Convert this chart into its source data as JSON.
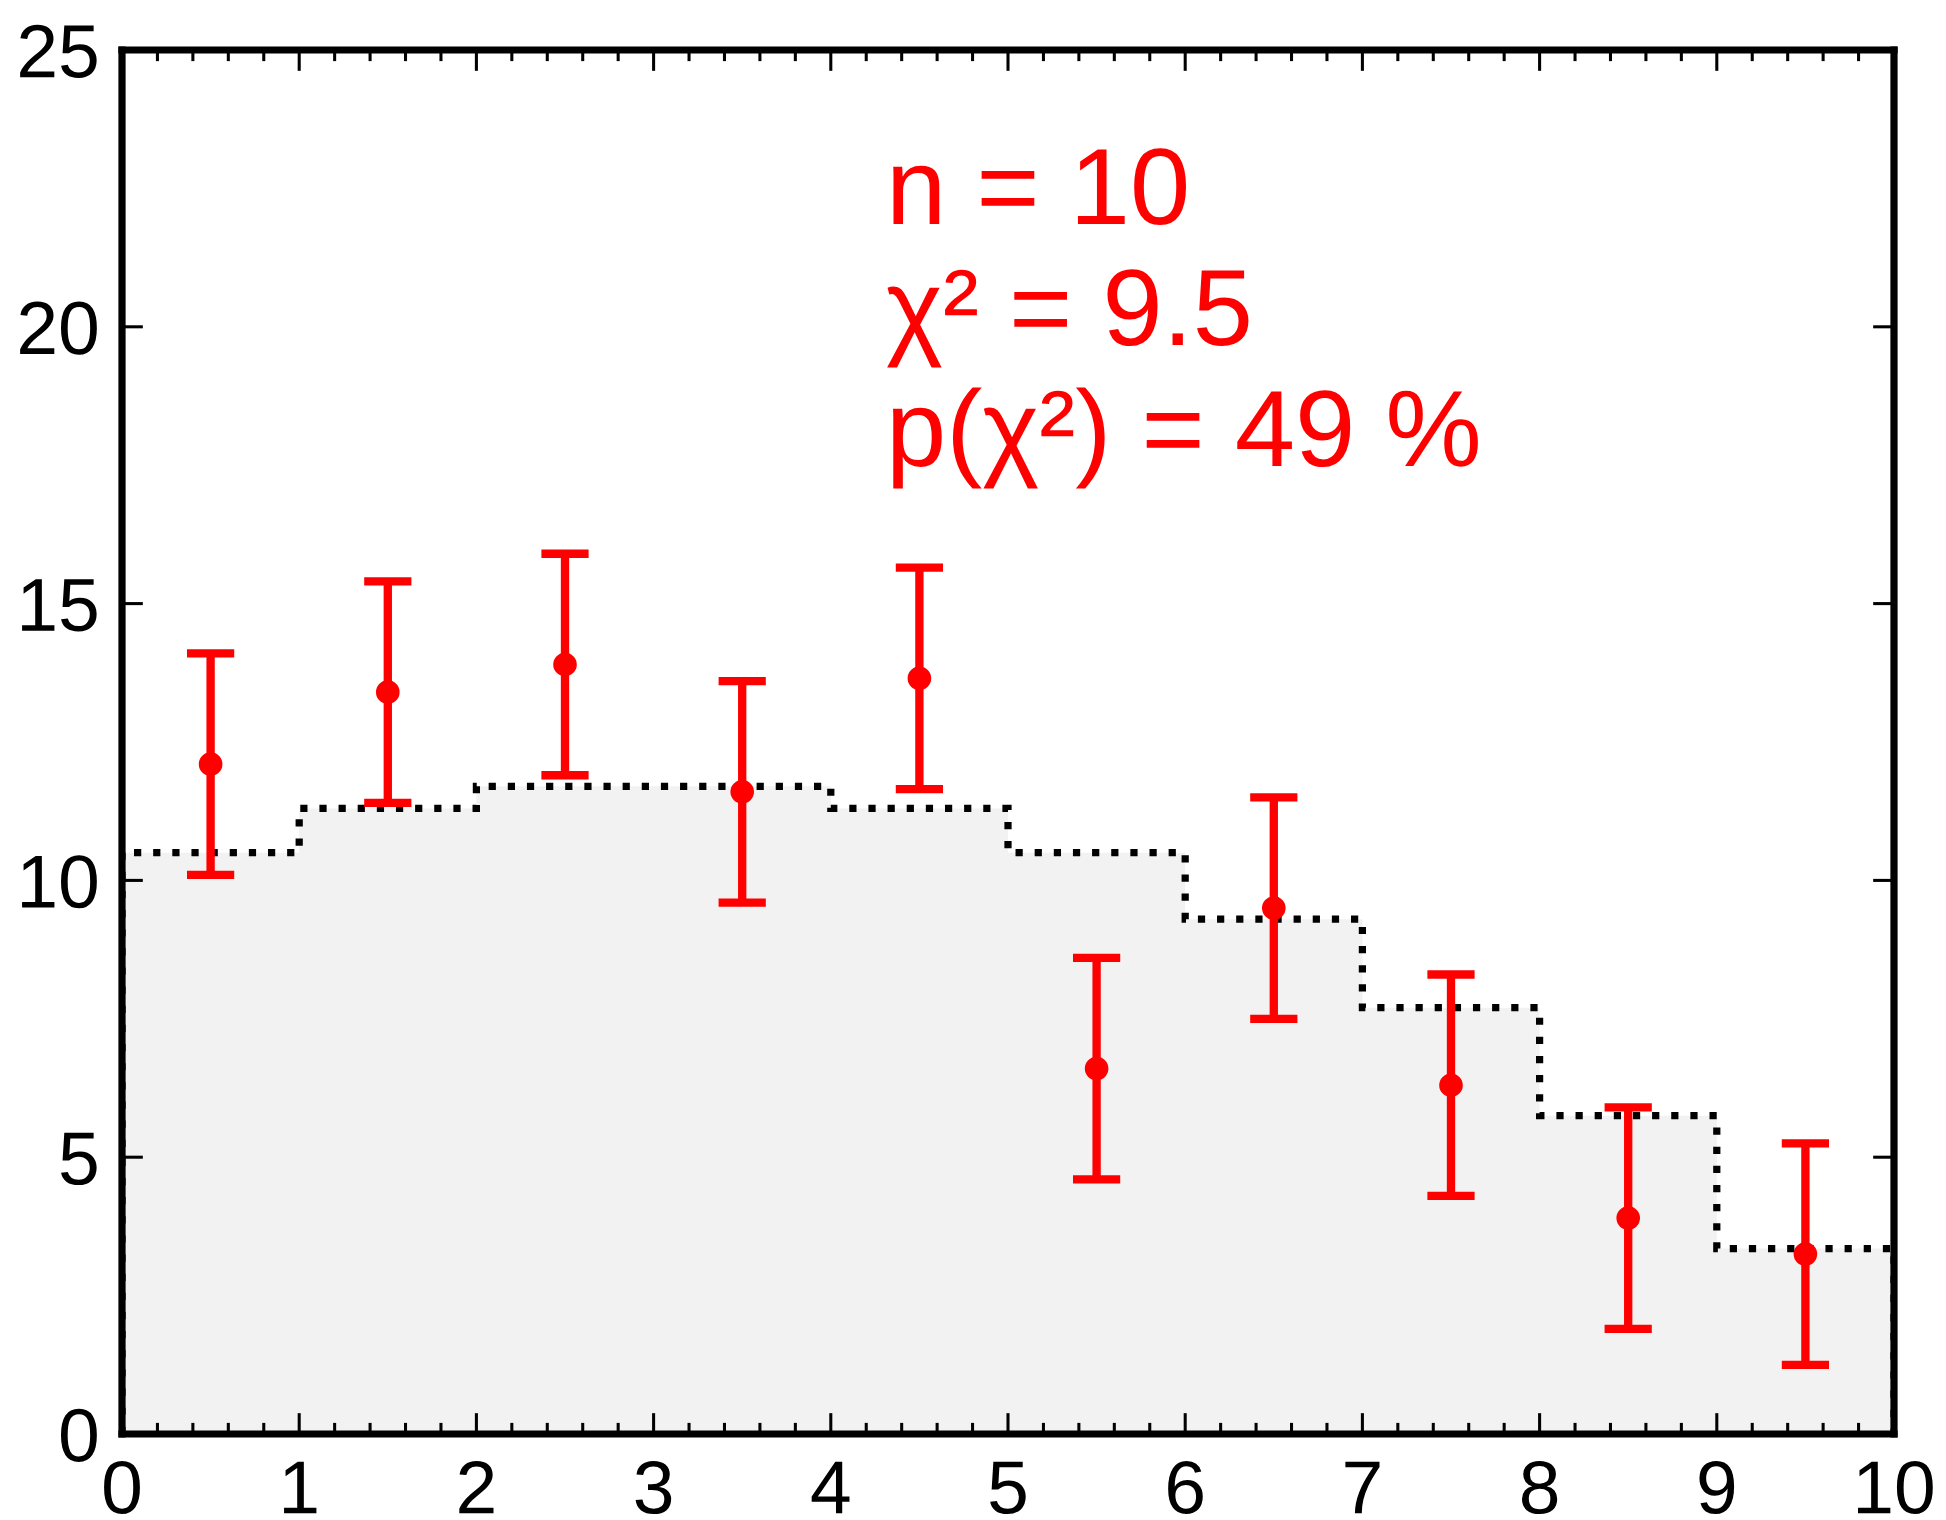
{
  "chart_data": {
    "type": "histogram",
    "xlim": [
      0,
      10
    ],
    "xticks": [
      0,
      1,
      2,
      3,
      4,
      5,
      6,
      7,
      8,
      9,
      10
    ],
    "ylim": [
      0,
      25
    ],
    "yticks": [
      0,
      5,
      10,
      15,
      20,
      25
    ],
    "annotations": [
      "n = 10",
      "χ² = 9.5",
      "p(χ²) = 49 %"
    ],
    "series": [
      {
        "bins": [
          0,
          1,
          2,
          3,
          4,
          5,
          6,
          7,
          8,
          9,
          10
        ],
        "values": [
          10.5,
          11.3,
          11.7,
          11.7,
          11.3,
          10.5,
          9.3,
          7.7,
          5.75,
          3.35
        ],
        "color": "#f2f2f2",
        "line_style": "dotted"
      },
      {
        "type": "scatter",
        "x": [
          0.5,
          1.5,
          2.5,
          3.5,
          4.5,
          5.5,
          6.5,
          7.5,
          8.5,
          9.5
        ],
        "values": [
          12.1,
          13.4,
          13.9,
          11.6,
          13.65,
          6.6,
          9.5,
          6.3,
          3.9,
          3.25
        ],
        "errors": [
          2,
          2,
          2,
          2,
          2,
          2,
          2,
          2,
          2,
          2
        ],
        "color": "#ff0000",
        "marker": "circle"
      }
    ]
  }
}
